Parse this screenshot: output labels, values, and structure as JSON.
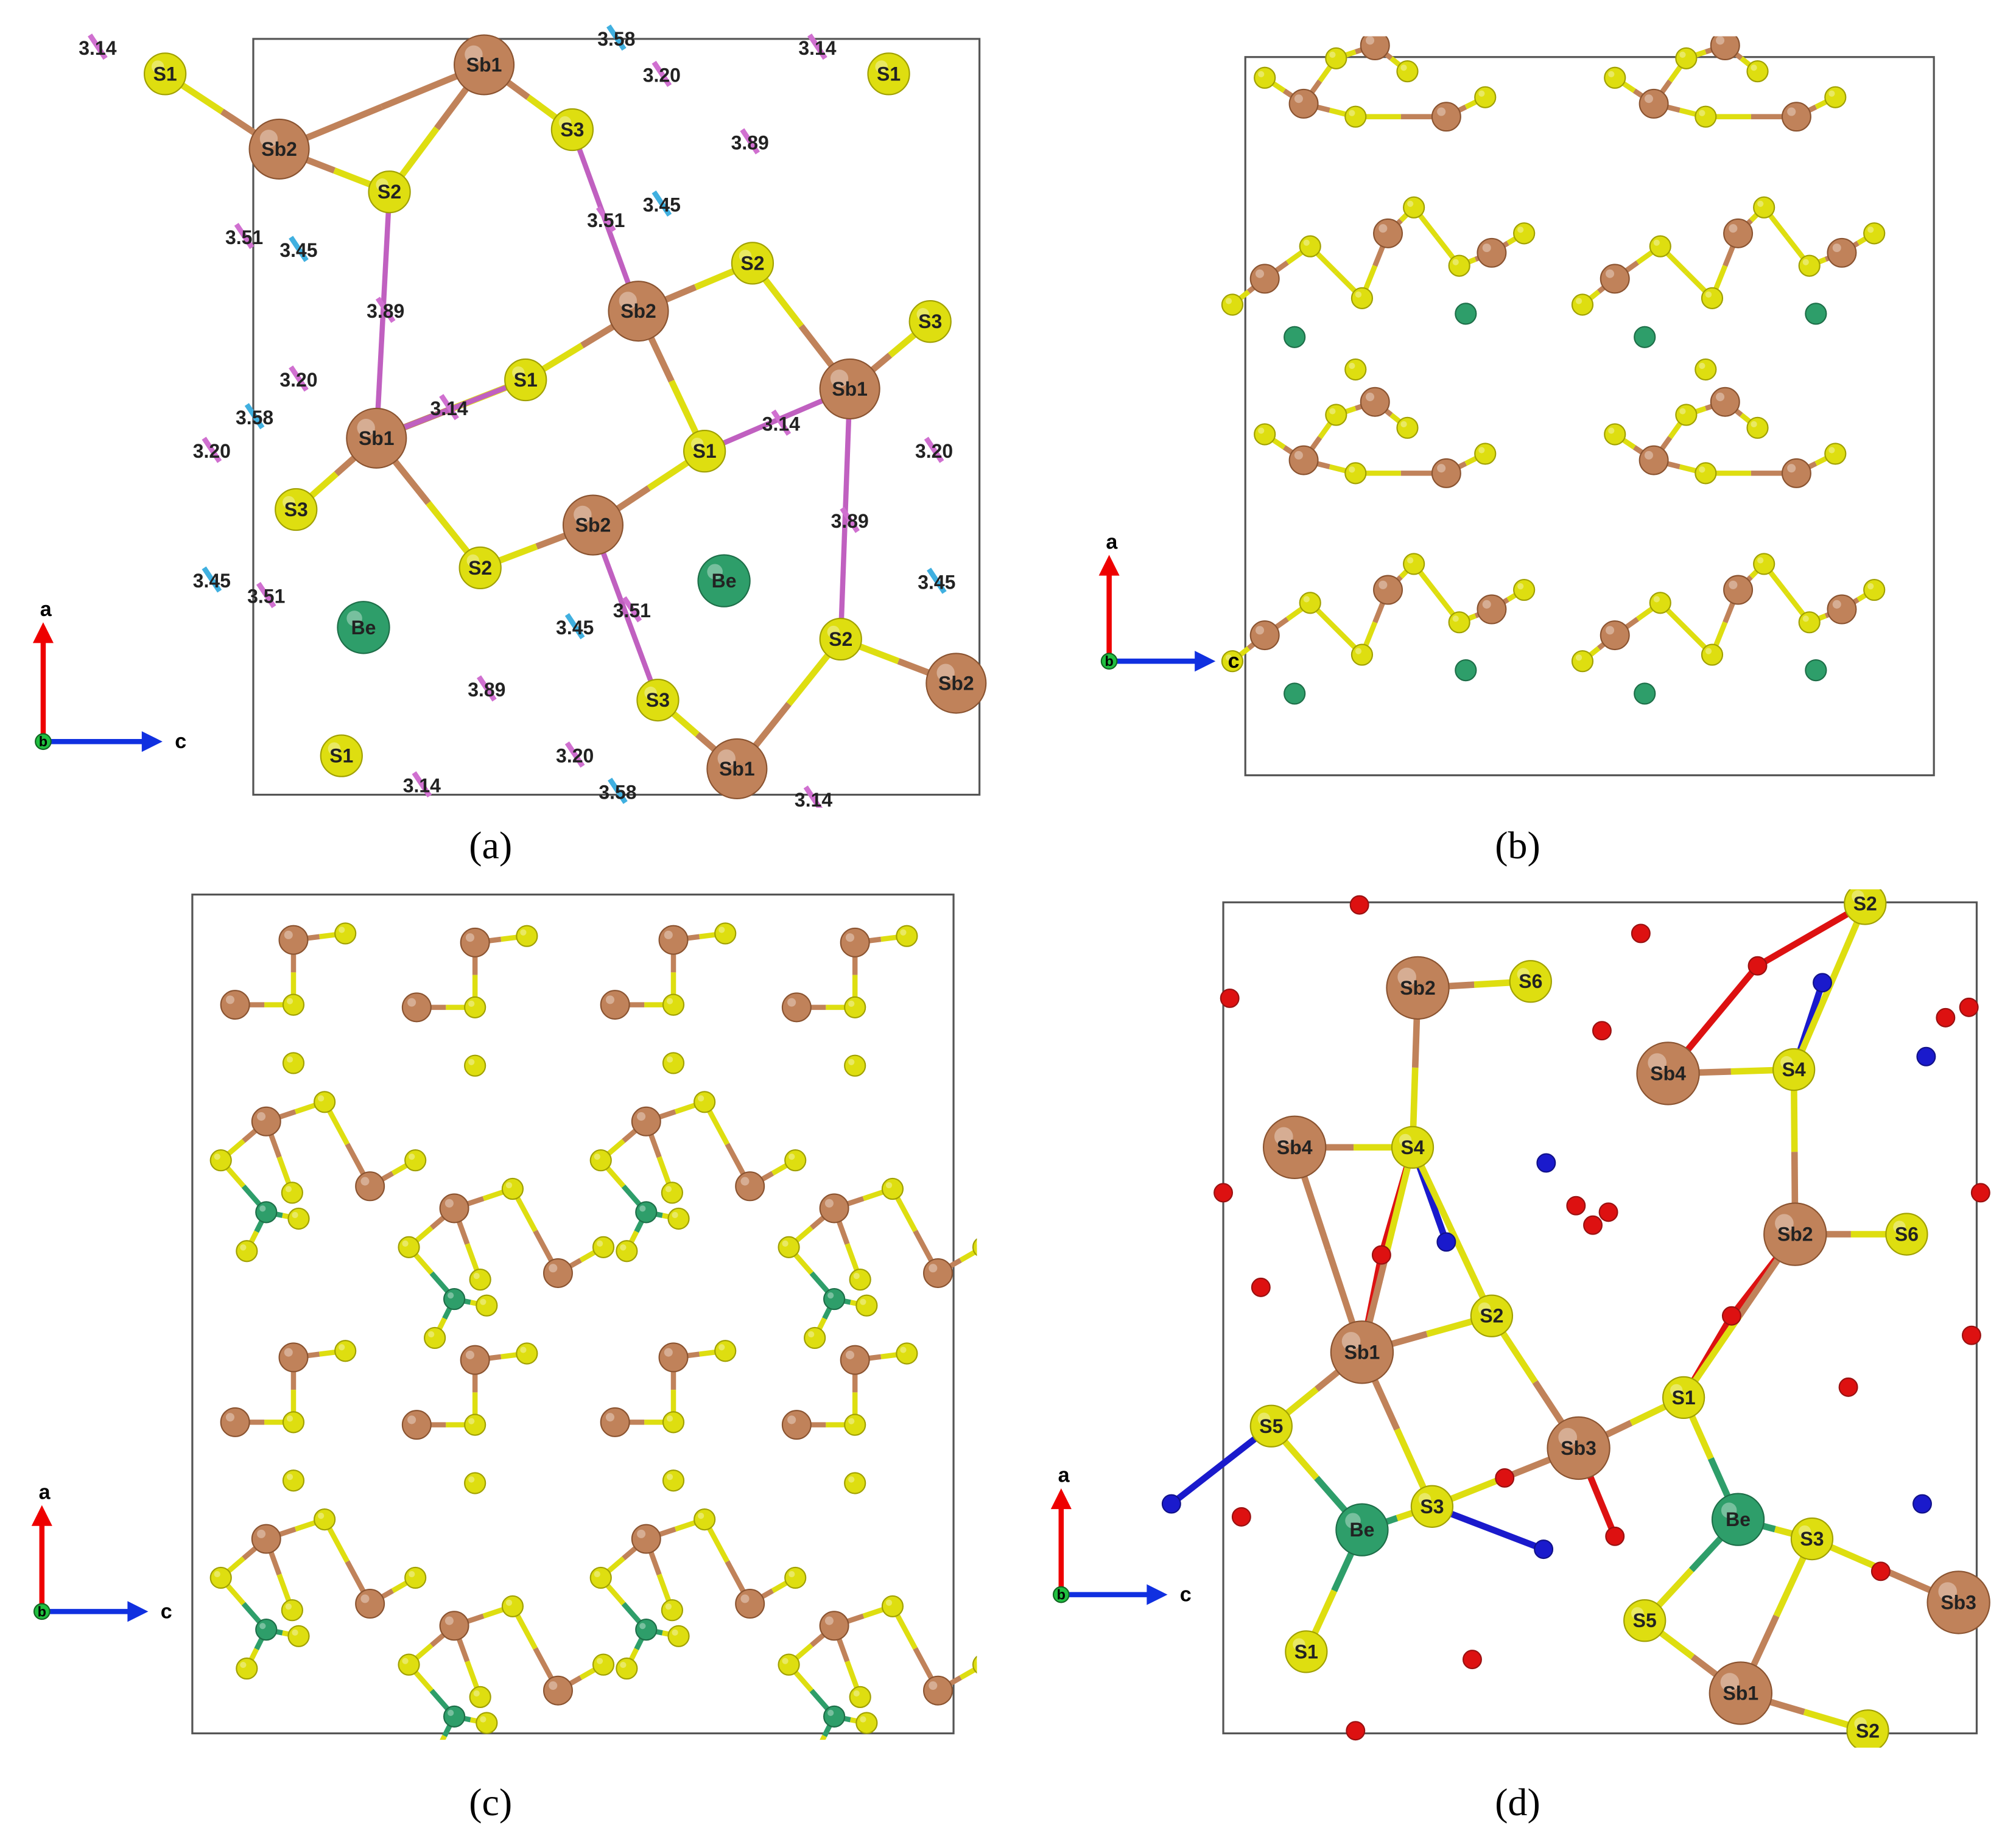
{
  "panels": [
    {
      "caption": "(a)",
      "axes": {
        "up": "a",
        "right": "c",
        "center": "b"
      },
      "atoms": [
        "S1",
        "Sb2",
        "Sb1",
        "S3",
        "S2",
        "Sb2",
        "S2",
        "S3",
        "S1",
        "Sb1",
        "Sb1",
        "S1",
        "S3",
        "Sb2",
        "S2",
        "Be",
        "Be",
        "S2",
        "Sb2",
        "S3",
        "S1",
        "Sb1",
        "S1"
      ],
      "distances": [
        "3.14",
        "3.14",
        "3.58",
        "3.20",
        "3.89",
        "3.45",
        "3.51",
        "3.51",
        "3.45",
        "3.89",
        "3.20",
        "3.14",
        "3.58",
        "3.14",
        "3.20",
        "3.20",
        "3.89",
        "3.45",
        "3.51",
        "3.45",
        "3.51",
        "3.45",
        "3.89",
        "3.20",
        "3.58",
        "3.14",
        "3.14"
      ]
    },
    {
      "caption": "(b)",
      "axes": {
        "up": "a",
        "right": "c",
        "center": "b"
      }
    },
    {
      "caption": "(c)",
      "axes": {
        "up": "a",
        "right": "c",
        "center": "b"
      }
    },
    {
      "caption": "(d)",
      "axes": {
        "up": "a",
        "right": "c",
        "center": "b"
      },
      "atoms": [
        "Sb2",
        "S6",
        "Sb4",
        "S4",
        "S2",
        "Sb4",
        "S4",
        "Sb2",
        "S6",
        "S2",
        "Sb1",
        "S1",
        "Sb3",
        "S5",
        "S3",
        "Be",
        "Be",
        "S3",
        "Sb3",
        "S5",
        "S1",
        "Sb1",
        "S2"
      ]
    }
  ]
}
